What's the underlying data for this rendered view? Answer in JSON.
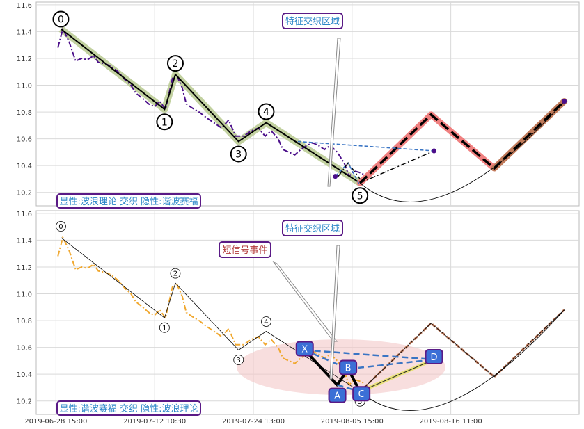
{
  "chart_data": [
    {
      "type": "line",
      "panel": "top",
      "annotation_region": "特征交织区域",
      "legend_text": "显性:波浪理论 交织 隐性:谐波赛福",
      "ylim": [
        10.1,
        11.62
      ],
      "yticks": [
        10.2,
        10.4,
        10.6,
        10.8,
        11.0,
        11.2,
        11.4,
        11.6
      ],
      "ytick_labels": [
        "10.2",
        "10.4",
        "10.6",
        "10.8",
        "11.0",
        "11.2",
        "11.4",
        "11.6"
      ],
      "grid": true,
      "price_series": [
        [
          0.2,
          11.28
        ],
        [
          0.7,
          11.42
        ],
        [
          1.3,
          11.33
        ],
        [
          2.0,
          11.18
        ],
        [
          2.6,
          11.2
        ],
        [
          3.2,
          11.19
        ],
        [
          3.8,
          11.22
        ],
        [
          4.3,
          11.17
        ],
        [
          5.0,
          11.16
        ],
        [
          5.6,
          11.14
        ],
        [
          6.3,
          11.1
        ],
        [
          7.0,
          11.04
        ],
        [
          7.6,
          11.0
        ],
        [
          8.1,
          10.94
        ],
        [
          8.8,
          10.9
        ],
        [
          9.4,
          10.86
        ],
        [
          10.0,
          10.84
        ],
        [
          10.5,
          10.88
        ],
        [
          11.1,
          10.82
        ],
        [
          11.8,
          11.05
        ],
        [
          12.2,
          11.08
        ],
        [
          12.8,
          10.98
        ],
        [
          13.2,
          10.86
        ],
        [
          13.8,
          10.83
        ],
        [
          14.5,
          10.8
        ],
        [
          15.2,
          10.76
        ],
        [
          16.0,
          10.72
        ],
        [
          16.8,
          10.68
        ],
        [
          17.5,
          10.74
        ],
        [
          18.2,
          10.62
        ],
        [
          19.0,
          10.62
        ],
        [
          19.8,
          10.66
        ],
        [
          20.5,
          10.68
        ],
        [
          21.2,
          10.62
        ],
        [
          21.8,
          10.66
        ],
        [
          22.5,
          10.6
        ],
        [
          23.0,
          10.52
        ],
        [
          23.6,
          10.5
        ],
        [
          24.2,
          10.48
        ],
        [
          24.8,
          10.52
        ],
        [
          25.4,
          10.55
        ],
        [
          26.0,
          10.57
        ],
        [
          26.6,
          10.55
        ],
        [
          27.2,
          10.52
        ],
        [
          27.8,
          10.55
        ],
        [
          28.5,
          10.5
        ],
        [
          29.2,
          10.42
        ],
        [
          29.7,
          10.32
        ],
        [
          30.2,
          10.36
        ],
        [
          30.7,
          10.35
        ],
        [
          31.3,
          10.33
        ]
      ],
      "wave_points": [
        {
          "label": "0",
          "x": 0.5,
          "y": 11.42
        },
        {
          "label": "1",
          "x": 11.0,
          "y": 10.82
        },
        {
          "label": "2",
          "x": 12.1,
          "y": 11.08
        },
        {
          "label": "3",
          "x": 18.5,
          "y": 10.58
        },
        {
          "label": "4",
          "x": 21.3,
          "y": 10.72
        },
        {
          "label": "5",
          "x": 30.8,
          "y": 10.27
        }
      ],
      "projection_red": [
        [
          30.8,
          10.27
        ],
        [
          38.0,
          10.78
        ]
      ],
      "projection_brown": [
        [
          44.4,
          10.38
        ],
        [
          51.5,
          10.88
        ]
      ],
      "projection_dashed": [
        [
          30.8,
          10.27
        ],
        [
          38.0,
          10.78
        ],
        [
          44.4,
          10.38
        ],
        [
          51.5,
          10.88
        ]
      ],
      "dashdot_lines": [
        [
          [
            30.8,
            10.27
          ],
          [
            38.3,
            10.51
          ]
        ],
        [
          [
            28.6,
            10.32
          ],
          [
            29.6,
            10.42
          ],
          [
            30.8,
            10.3
          ]
        ]
      ],
      "blue_dashed": [
        [
          [
            24.5,
            10.58
          ],
          [
            38.3,
            10.51
          ]
        ],
        [
          [
            28.3,
            10.32
          ],
          [
            29.6,
            10.42
          ],
          [
            30.8,
            10.25
          ]
        ]
      ],
      "arc": {
        "from": [
          30.8,
          10.27
        ],
        "to": [
          51.5,
          10.88
        ]
      },
      "point_markers": [
        [
          28.3,
          10.32
        ],
        [
          38.3,
          10.51
        ],
        [
          51.5,
          10.88
        ]
      ]
    },
    {
      "type": "line",
      "panel": "bottom",
      "annotation_region": "特征交织区域",
      "short_signal_label": "短信号事件",
      "legend_text": "显性:谐波赛福 交织 隐性:波浪理论",
      "ylim": [
        10.1,
        11.62
      ],
      "yticks": [
        10.2,
        10.4,
        10.6,
        10.8,
        11.0,
        11.2,
        11.4,
        11.6
      ],
      "ytick_labels": [
        "10.2",
        "10.4",
        "10.6",
        "10.8",
        "11.0",
        "11.2",
        "11.4",
        "11.6"
      ],
      "grid": true,
      "wave_points": [
        {
          "label": "0",
          "x": 0.5,
          "y": 11.42
        },
        {
          "label": "1",
          "x": 11.0,
          "y": 10.82
        },
        {
          "label": "2",
          "x": 12.1,
          "y": 11.08
        },
        {
          "label": "3",
          "x": 18.5,
          "y": 10.58
        },
        {
          "label": "4",
          "x": 21.3,
          "y": 10.72
        },
        {
          "label": "5",
          "x": 30.8,
          "y": 10.27
        }
      ],
      "harmonic_points": [
        {
          "label": "X",
          "x": 25.2,
          "y": 10.58
        },
        {
          "label": "A",
          "x": 28.5,
          "y": 10.32
        },
        {
          "label": "B",
          "x": 29.6,
          "y": 10.44
        },
        {
          "label": "C",
          "x": 30.8,
          "y": 10.27
        },
        {
          "label": "D",
          "x": 38.3,
          "y": 10.51
        }
      ],
      "projection_dashed": [
        [
          30.8,
          10.27
        ],
        [
          38.0,
          10.78
        ],
        [
          44.4,
          10.38
        ],
        [
          51.5,
          10.88
        ]
      ],
      "arc": {
        "from": [
          30.8,
          10.27
        ],
        "to": [
          51.5,
          10.88
        ]
      }
    }
  ],
  "x_axis": {
    "tick_labels": [
      "2019-06-28 15:00",
      "2019-07-12 10:30",
      "2019-07-24 13:00",
      "2019-08-05 15:00",
      "2019-08-16 11:00"
    ],
    "tick_values": [
      0,
      10,
      20,
      30,
      40
    ]
  },
  "colors": {
    "price_top": "#4b0f8a",
    "price_bottom": "#f0a830",
    "wave_shadow": "#b7c98f",
    "projection_red": "#f08080",
    "projection_brown": "#c07a5a",
    "blue": "#3a75c4",
    "label_border": "#5a1a86",
    "label_blue": "#2a86c8",
    "label_red": "#b23a3a",
    "ellipse": "#f3c8c8",
    "harmonic_box": "#3b6fd6"
  }
}
